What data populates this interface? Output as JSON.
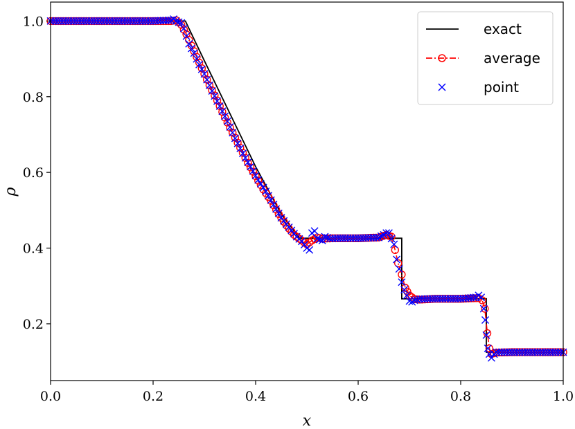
{
  "chart_data": {
    "type": "line",
    "xlabel": "x",
    "ylabel": "ρ",
    "xlim": [
      0.0,
      1.0
    ],
    "ylim": [
      0.05,
      1.05
    ],
    "xticks": [
      "0.0",
      "0.2",
      "0.4",
      "0.6",
      "0.8",
      "1.0"
    ],
    "yticks": [
      "0.2",
      "0.4",
      "0.6",
      "0.8",
      "1.0"
    ],
    "xtick_values": [
      0.0,
      0.2,
      0.4,
      0.6,
      0.8,
      1.0
    ],
    "ytick_values": [
      0.2,
      0.4,
      0.6,
      0.8,
      1.0
    ],
    "grid": false,
    "legend_position": "top-right",
    "series": [
      {
        "name": "exact",
        "style": "solid-line",
        "color": "#000000",
        "points": [
          [
            0.0,
            1.0
          ],
          [
            0.263,
            1.0
          ],
          [
            0.3,
            0.895
          ],
          [
            0.35,
            0.755
          ],
          [
            0.4,
            0.615
          ],
          [
            0.45,
            0.49
          ],
          [
            0.486,
            0.426
          ],
          [
            0.685,
            0.426
          ],
          [
            0.685,
            0.266
          ],
          [
            0.85,
            0.266
          ],
          [
            0.85,
            0.125
          ],
          [
            1.0,
            0.125
          ]
        ]
      },
      {
        "name": "average",
        "style": "dash-dot-circles",
        "color": "#ff0000",
        "points": [
          [
            0.0,
            1.0
          ],
          [
            0.1,
            1.0
          ],
          [
            0.2,
            1.0
          ],
          [
            0.235,
            1.0
          ],
          [
            0.245,
            1.002
          ],
          [
            0.255,
            0.99
          ],
          [
            0.265,
            0.965
          ],
          [
            0.275,
            0.935
          ],
          [
            0.285,
            0.905
          ],
          [
            0.295,
            0.875
          ],
          [
            0.31,
            0.83
          ],
          [
            0.325,
            0.79
          ],
          [
            0.34,
            0.745
          ],
          [
            0.355,
            0.705
          ],
          [
            0.37,
            0.665
          ],
          [
            0.385,
            0.625
          ],
          [
            0.4,
            0.59
          ],
          [
            0.415,
            0.555
          ],
          [
            0.43,
            0.525
          ],
          [
            0.445,
            0.49
          ],
          [
            0.46,
            0.46
          ],
          [
            0.475,
            0.435
          ],
          [
            0.49,
            0.42
          ],
          [
            0.5,
            0.41
          ],
          [
            0.51,
            0.42
          ],
          [
            0.52,
            0.428
          ],
          [
            0.53,
            0.425
          ],
          [
            0.55,
            0.426
          ],
          [
            0.6,
            0.426
          ],
          [
            0.64,
            0.428
          ],
          [
            0.655,
            0.435
          ],
          [
            0.665,
            0.43
          ],
          [
            0.672,
            0.395
          ],
          [
            0.678,
            0.36
          ],
          [
            0.685,
            0.33
          ],
          [
            0.692,
            0.295
          ],
          [
            0.7,
            0.275
          ],
          [
            0.71,
            0.265
          ],
          [
            0.72,
            0.264
          ],
          [
            0.75,
            0.266
          ],
          [
            0.8,
            0.266
          ],
          [
            0.835,
            0.268
          ],
          [
            0.842,
            0.262
          ],
          [
            0.847,
            0.24
          ],
          [
            0.852,
            0.175
          ],
          [
            0.856,
            0.135
          ],
          [
            0.86,
            0.12
          ],
          [
            0.87,
            0.124
          ],
          [
            0.9,
            0.125
          ],
          [
            0.95,
            0.125
          ],
          [
            1.0,
            0.125
          ]
        ]
      },
      {
        "name": "point",
        "style": "x-markers",
        "color": "#0000ff",
        "points": [
          [
            0.0,
            1.0
          ],
          [
            0.1,
            1.0
          ],
          [
            0.2,
            1.0
          ],
          [
            0.235,
            1.002
          ],
          [
            0.24,
            1.005
          ],
          [
            0.245,
            1.0
          ],
          [
            0.25,
            0.997
          ],
          [
            0.255,
            0.995
          ],
          [
            0.26,
            0.98
          ],
          [
            0.265,
            0.96
          ],
          [
            0.27,
            0.94
          ],
          [
            0.28,
            0.915
          ],
          [
            0.29,
            0.885
          ],
          [
            0.3,
            0.86
          ],
          [
            0.315,
            0.815
          ],
          [
            0.33,
            0.775
          ],
          [
            0.345,
            0.735
          ],
          [
            0.36,
            0.69
          ],
          [
            0.375,
            0.65
          ],
          [
            0.39,
            0.615
          ],
          [
            0.405,
            0.58
          ],
          [
            0.42,
            0.55
          ],
          [
            0.435,
            0.515
          ],
          [
            0.45,
            0.48
          ],
          [
            0.465,
            0.455
          ],
          [
            0.48,
            0.43
          ],
          [
            0.49,
            0.418
          ],
          [
            0.5,
            0.4
          ],
          [
            0.505,
            0.395
          ],
          [
            0.51,
            0.44
          ],
          [
            0.515,
            0.445
          ],
          [
            0.52,
            0.425
          ],
          [
            0.53,
            0.42
          ],
          [
            0.535,
            0.43
          ],
          [
            0.545,
            0.425
          ],
          [
            0.56,
            0.426
          ],
          [
            0.6,
            0.426
          ],
          [
            0.64,
            0.428
          ],
          [
            0.65,
            0.435
          ],
          [
            0.655,
            0.44
          ],
          [
            0.66,
            0.44
          ],
          [
            0.665,
            0.425
          ],
          [
            0.67,
            0.41
          ],
          [
            0.675,
            0.37
          ],
          [
            0.68,
            0.345
          ],
          [
            0.685,
            0.31
          ],
          [
            0.69,
            0.29
          ],
          [
            0.695,
            0.275
          ],
          [
            0.7,
            0.26
          ],
          [
            0.705,
            0.258
          ],
          [
            0.71,
            0.262
          ],
          [
            0.72,
            0.265
          ],
          [
            0.75,
            0.266
          ],
          [
            0.8,
            0.266
          ],
          [
            0.83,
            0.27
          ],
          [
            0.835,
            0.275
          ],
          [
            0.84,
            0.27
          ],
          [
            0.845,
            0.24
          ],
          [
            0.848,
            0.21
          ],
          [
            0.85,
            0.17
          ],
          [
            0.853,
            0.135
          ],
          [
            0.856,
            0.12
          ],
          [
            0.86,
            0.11
          ],
          [
            0.865,
            0.12
          ],
          [
            0.87,
            0.125
          ],
          [
            0.9,
            0.125
          ],
          [
            0.95,
            0.125
          ],
          [
            1.0,
            0.125
          ]
        ]
      }
    ]
  }
}
